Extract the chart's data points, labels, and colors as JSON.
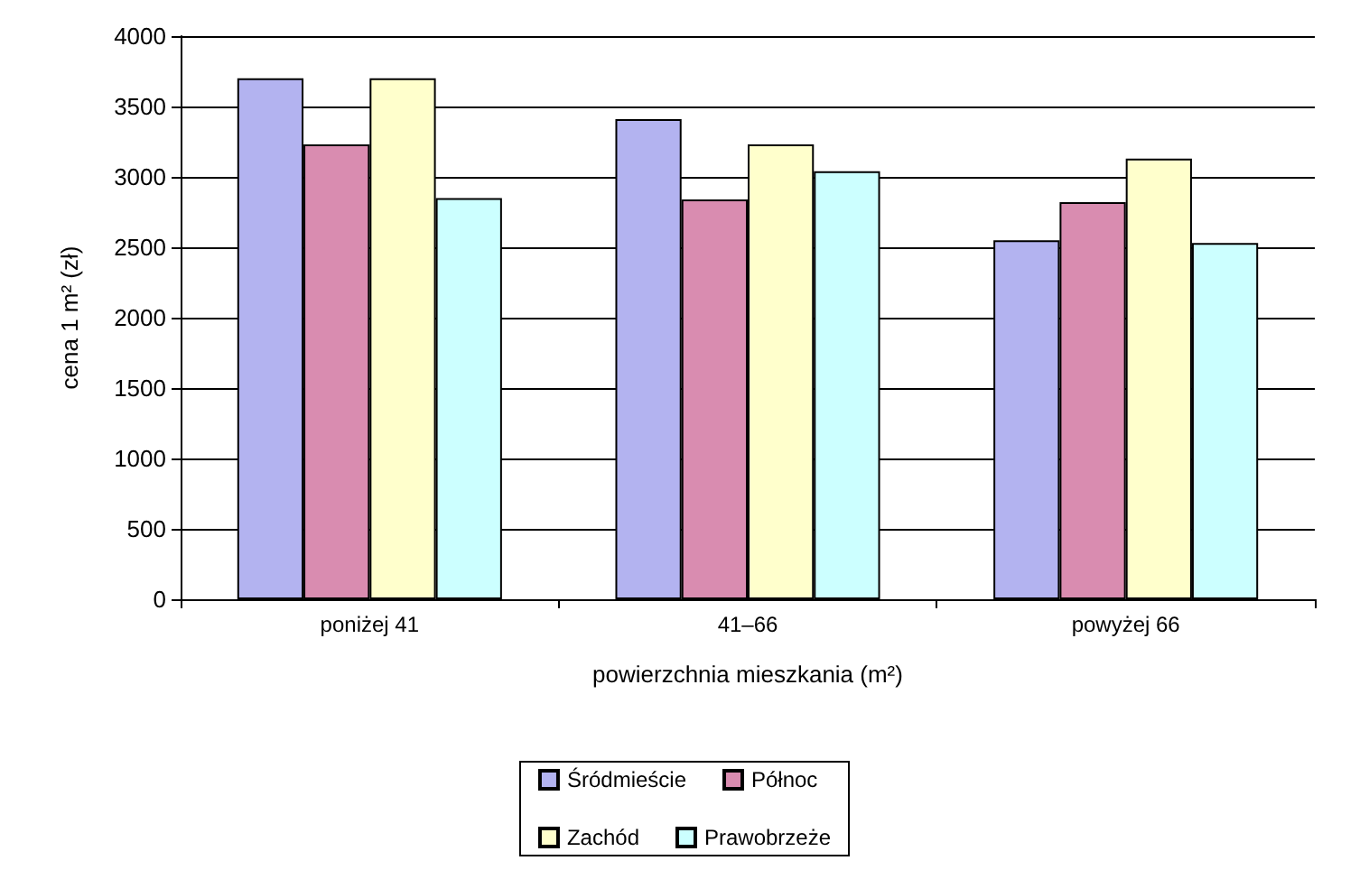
{
  "chart_data": {
    "type": "bar",
    "xlabel": "powierzchnia mieszkania (m²)",
    "ylabel": "cena 1 m² (zł)",
    "categories": [
      "poniżej 41",
      "41–66",
      "powyżej 66"
    ],
    "series": [
      {
        "name": "Śródmieście",
        "color": "#b3b3f0",
        "values": [
          3700,
          3410,
          2550
        ]
      },
      {
        "name": "Północ",
        "color": "#d98cb0",
        "values": [
          3230,
          2840,
          2820
        ]
      },
      {
        "name": "Zachód",
        "color": "#ffffcc",
        "values": [
          3700,
          3230,
          3130
        ]
      },
      {
        "name": "Prawobrzeże",
        "color": "#ccffff",
        "values": [
          2850,
          3040,
          2530
        ]
      }
    ],
    "ylim": [
      0,
      4000
    ],
    "yticks": [
      0,
      500,
      1000,
      1500,
      2000,
      2500,
      3000,
      3500,
      4000
    ],
    "grid": "y",
    "legend": "bottom"
  }
}
